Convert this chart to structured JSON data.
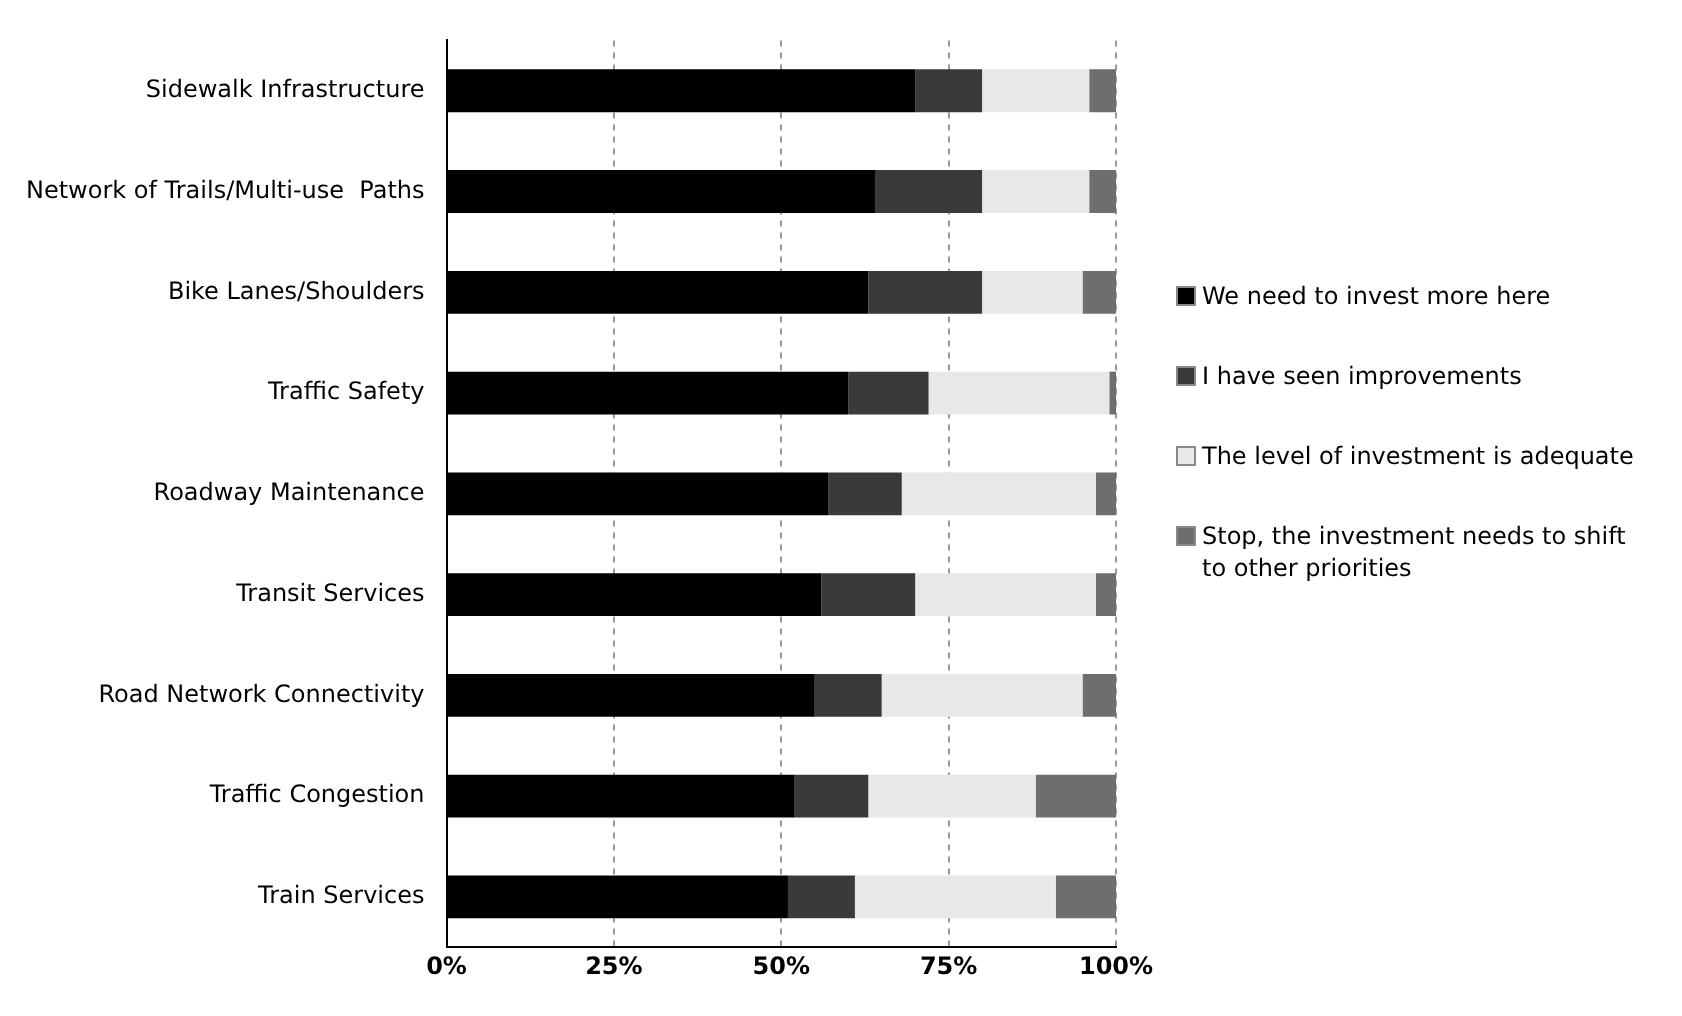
{
  "chart_data": {
    "type": "bar",
    "orientation": "horizontal",
    "stacked": true,
    "categories": [
      "Sidewalk Infrastructure",
      "Network of Trails/Multi-use  Paths",
      "Bike Lanes/Shoulders",
      "Traffic Safety",
      "Roadway Maintenance",
      "Transit Services",
      "Road Network Connectivity",
      "Traffic Congestion",
      "Train Services"
    ],
    "series": [
      {
        "name": "We need to invest more here",
        "color": "#000000",
        "values": [
          70,
          64,
          63,
          60,
          57,
          56,
          55,
          52,
          51
        ]
      },
      {
        "name": "I have seen improvements",
        "color": "#3a3a3a",
        "values": [
          10,
          16,
          17,
          12,
          11,
          14,
          10,
          11,
          10
        ]
      },
      {
        "name": "The level of investment is adequate",
        "color": "#e8e8e8",
        "values": [
          16,
          16,
          15,
          27,
          29,
          27,
          30,
          25,
          30
        ]
      },
      {
        "name": "Stop, the investment needs to shift to other priorities",
        "color": "#6e6e6e",
        "values": [
          4,
          4,
          5,
          1,
          3,
          3,
          5,
          12,
          9
        ]
      }
    ],
    "xlim": [
      0,
      100
    ],
    "xticks": [
      {
        "value": 0,
        "label": "0%"
      },
      {
        "value": 25,
        "label": "25%"
      },
      {
        "value": 50,
        "label": "50%"
      },
      {
        "value": 75,
        "label": "75%"
      },
      {
        "value": 100,
        "label": "100%"
      }
    ],
    "grid": "x",
    "legend": "right"
  }
}
